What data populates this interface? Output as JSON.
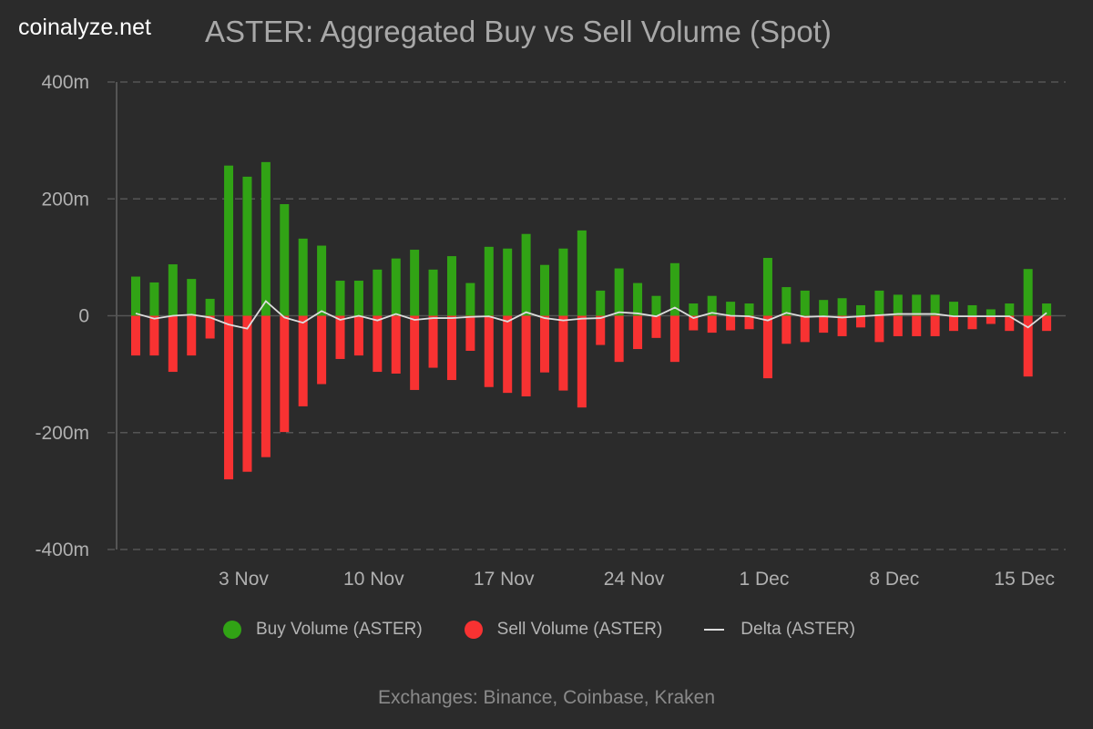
{
  "brand": "coinalyze.net",
  "footer": "Exchanges: Binance, Coinbase, Kraken",
  "chart_data": {
    "type": "bar",
    "title": "ASTER: Aggregated Buy vs Sell Volume (Spot)",
    "xlabel": "",
    "ylabel": "",
    "ylim": [
      -400,
      400
    ],
    "y_unit": "m",
    "y_ticks": [
      {
        "value": 400,
        "label": "400m"
      },
      {
        "value": 200,
        "label": "200m"
      },
      {
        "value": 0,
        "label": "0"
      },
      {
        "value": -200,
        "label": "-200m"
      },
      {
        "value": -400,
        "label": "-400m"
      }
    ],
    "x_ticks": [
      {
        "category": "3 Nov",
        "label": "3 Nov"
      },
      {
        "category": "10 Nov",
        "label": "10 Nov"
      },
      {
        "category": "17 Nov",
        "label": "17 Nov"
      },
      {
        "category": "24 Nov",
        "label": "24 Nov"
      },
      {
        "category": "1 Dec",
        "label": "1 Dec"
      },
      {
        "category": "8 Dec",
        "label": "8 Dec"
      },
      {
        "category": "15 Dec",
        "label": "15 Dec"
      }
    ],
    "grid": true,
    "legend_placement": "bottom",
    "categories": [
      "28 Oct",
      "29 Oct",
      "30 Oct",
      "31 Oct",
      "1 Nov",
      "2 Nov",
      "3 Nov",
      "4 Nov",
      "5 Nov",
      "6 Nov",
      "7 Nov",
      "8 Nov",
      "9 Nov",
      "10 Nov",
      "11 Nov",
      "12 Nov",
      "13 Nov",
      "14 Nov",
      "15 Nov",
      "16 Nov",
      "17 Nov",
      "18 Nov",
      "19 Nov",
      "20 Nov",
      "21 Nov",
      "22 Nov",
      "23 Nov",
      "24 Nov",
      "25 Nov",
      "26 Nov",
      "27 Nov",
      "28 Nov",
      "29 Nov",
      "30 Nov",
      "1 Dec",
      "2 Dec",
      "3 Dec",
      "4 Dec",
      "5 Dec",
      "6 Dec",
      "7 Dec",
      "8 Dec",
      "9 Dec",
      "10 Dec",
      "11 Dec",
      "12 Dec",
      "13 Dec",
      "14 Dec",
      "15 Dec",
      "16 Dec"
    ],
    "series": [
      {
        "name": "Buy Volume (ASTER)",
        "type": "bar",
        "color": "#31a315",
        "values": [
          67,
          57,
          88,
          63,
          29,
          257,
          238,
          263,
          191,
          132,
          120,
          60,
          60,
          79,
          98,
          113,
          79,
          102,
          56,
          118,
          115,
          140,
          87,
          115,
          146,
          43,
          81,
          56,
          34,
          90,
          21,
          34,
          24,
          21,
          99,
          49,
          43,
          27,
          30,
          18,
          43,
          36,
          36,
          36,
          24,
          18,
          11,
          21,
          80,
          21
        ]
      },
      {
        "name": "Sell Volume (ASTER)",
        "type": "bar",
        "color": "#f83232",
        "values": [
          -68,
          -68,
          -96,
          -68,
          -39,
          -280,
          -267,
          -242,
          -199,
          -155,
          -117,
          -74,
          -68,
          -96,
          -99,
          -127,
          -89,
          -110,
          -60,
          -122,
          -132,
          -138,
          -97,
          -128,
          -157,
          -50,
          -79,
          -57,
          -38,
          -79,
          -25,
          -29,
          -25,
          -23,
          -107,
          -48,
          -45,
          -29,
          -35,
          -20,
          -45,
          -35,
          -35,
          -35,
          -26,
          -23,
          -14,
          -26,
          -104,
          -26
        ]
      },
      {
        "name": "Delta (ASTER)",
        "type": "line",
        "color": "#dddddd",
        "values": [
          4,
          -5,
          0,
          2,
          -3,
          -15,
          -22,
          25,
          -3,
          -12,
          8,
          -7,
          0,
          -8,
          3,
          -7,
          -4,
          -4,
          -2,
          -1,
          -10,
          6,
          -4,
          -8,
          -5,
          -4,
          6,
          4,
          -1,
          14,
          -4,
          5,
          0,
          -1,
          -8,
          5,
          -2,
          -1,
          -3,
          -1,
          1,
          3,
          3,
          3,
          -1,
          -1,
          -1,
          -1,
          -20,
          5
        ]
      }
    ]
  }
}
